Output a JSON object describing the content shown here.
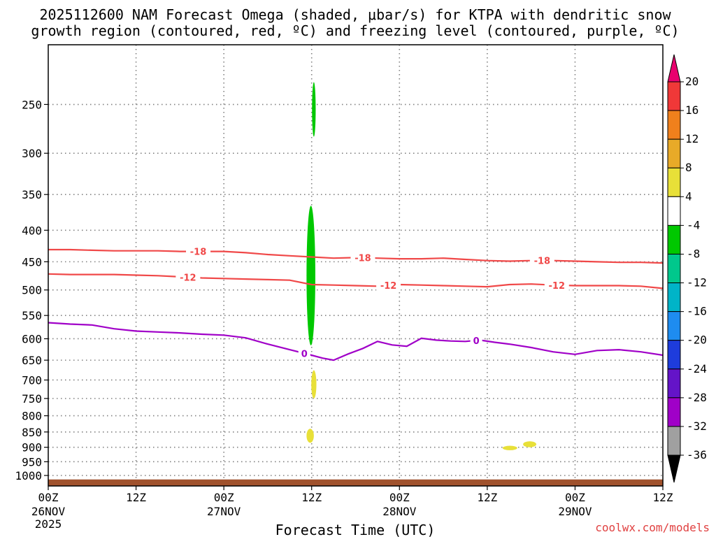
{
  "chart_data": {
    "type": "time-height contour plot",
    "title_line1": "2025112600 NAM Forecast Omega (shaded, μbar/s) for KTPA with dendritic snow",
    "title_line2": "growth region (contoured, red, ºC) and freezing level (contoured, purple, ºC)",
    "xlabel": "Forecast Time (UTC)",
    "credit": "coolwx.com/models",
    "x_range_hours": [
      0,
      84
    ],
    "y_range_hpa": [
      1040,
      200
    ],
    "x_ticks": [
      {
        "hour": 0,
        "label": "00Z",
        "date": "26NOV",
        "year": "2025"
      },
      {
        "hour": 12,
        "label": "12Z",
        "date": "",
        "year": ""
      },
      {
        "hour": 24,
        "label": "00Z",
        "date": "27NOV",
        "year": ""
      },
      {
        "hour": 36,
        "label": "12Z",
        "date": "",
        "year": ""
      },
      {
        "hour": 48,
        "label": "00Z",
        "date": "28NOV",
        "year": ""
      },
      {
        "hour": 60,
        "label": "12Z",
        "date": "",
        "year": ""
      },
      {
        "hour": 72,
        "label": "00Z",
        "date": "29NOV",
        "year": ""
      },
      {
        "hour": 84,
        "label": "12Z",
        "date": "",
        "year": ""
      }
    ],
    "y_ticks": [
      1000,
      950,
      900,
      850,
      800,
      750,
      700,
      650,
      600,
      550,
      500,
      450,
      400,
      350,
      300,
      250
    ],
    "colorbar": {
      "levels": [
        "20",
        "16",
        "12",
        "8",
        "4",
        "-4",
        "-8",
        "-12",
        "-16",
        "-20",
        "-24",
        "-28",
        "-32",
        "-36"
      ],
      "colors": [
        "#e8006e",
        "#f03838",
        "#f0801c",
        "#e8aa28",
        "#e8e038",
        "#ffffff",
        "#00c800",
        "#00c88c",
        "#00b4c8",
        "#1e8cf0",
        "#1e3cdc",
        "#6414c8",
        "#a000c8",
        "#a0a0a0",
        "#000000"
      ]
    },
    "series": [
      {
        "name": "-18",
        "color": "#f04848",
        "hours": [
          0,
          3,
          6,
          9,
          12,
          15,
          18,
          21,
          24,
          27,
          30,
          33,
          36,
          39,
          42,
          45,
          48,
          51,
          54,
          57,
          60,
          63,
          66,
          69,
          72,
          75,
          78,
          81,
          84
        ],
        "values_hpa": [
          430,
          430,
          431,
          432,
          432,
          432,
          433,
          433,
          433,
          435,
          438,
          440,
          442,
          444,
          443,
          444,
          445,
          445,
          444,
          446,
          448,
          449,
          448,
          448,
          449,
          450,
          451,
          451,
          452
        ],
        "label_hours": [
          20.5,
          43,
          67.5
        ]
      },
      {
        "name": "-12",
        "color": "#f04848",
        "hours": [
          0,
          3,
          6,
          9,
          12,
          15,
          18,
          21,
          24,
          27,
          30,
          33,
          36,
          39,
          42,
          45,
          48,
          51,
          54,
          57,
          60,
          63,
          66,
          69,
          72,
          75,
          78,
          81,
          84
        ],
        "values_hpa": [
          471,
          472,
          472,
          472,
          473,
          474,
          476,
          478,
          479,
          480,
          481,
          482,
          490,
          491,
          492,
          493,
          490,
          491,
          492,
          493,
          494,
          490,
          489,
          491,
          492,
          492,
          492,
          493,
          497
        ],
        "label_hours": [
          19.1,
          46.5,
          69.5
        ]
      },
      {
        "name": "0",
        "color": "#a000c8",
        "hours": [
          0,
          3,
          6,
          9,
          12,
          15,
          18,
          21,
          24,
          27,
          30,
          33,
          36,
          37.5,
          39,
          41,
          43,
          45,
          47,
          49,
          51,
          53,
          55,
          57,
          59,
          61,
          63,
          66,
          69,
          72,
          75,
          78,
          81,
          84
        ],
        "values_hpa": [
          565,
          568,
          570,
          578,
          583,
          585,
          587,
          590,
          592,
          598,
          612,
          625,
          638,
          645,
          650,
          635,
          622,
          606,
          614,
          617,
          599,
          603,
          605,
          606,
          603,
          608,
          612,
          620,
          630,
          636,
          627,
          625,
          630,
          638
        ],
        "label_hours": [
          35,
          58.5
        ]
      }
    ],
    "omega_features": [
      {
        "value_range": "-4 to -8",
        "color": "#00c800",
        "hour_center": 36.3,
        "hpa_top": 230,
        "hpa_bottom": 282,
        "half_width_hours": 0.25
      },
      {
        "value_range": "-4 to -8",
        "color": "#00c800",
        "hour_center": 35.9,
        "hpa_top": 365,
        "hpa_bottom": 615,
        "half_width_hours": 0.6
      },
      {
        "value_range": "4 to 8",
        "color": "#e8e038",
        "hour_center": 36.3,
        "hpa_top": 675,
        "hpa_bottom": 750,
        "half_width_hours": 0.35
      },
      {
        "value_range": "4 to 8",
        "color": "#e8e038",
        "hour_center": 35.8,
        "hpa_top": 840,
        "hpa_bottom": 885,
        "half_width_hours": 0.5
      },
      {
        "value_range": "4 to 8",
        "color": "#e8e038",
        "hour_center": 63.1,
        "hpa_top": 895,
        "hpa_bottom": 910,
        "half_width_hours": 1.0
      },
      {
        "value_range": "4 to 8",
        "color": "#e8e038",
        "hour_center": 65.8,
        "hpa_top": 880,
        "hpa_bottom": 900,
        "half_width_hours": 0.9
      }
    ],
    "terrain": {
      "color": "#a0522d",
      "surface_hpa": 1015
    }
  }
}
